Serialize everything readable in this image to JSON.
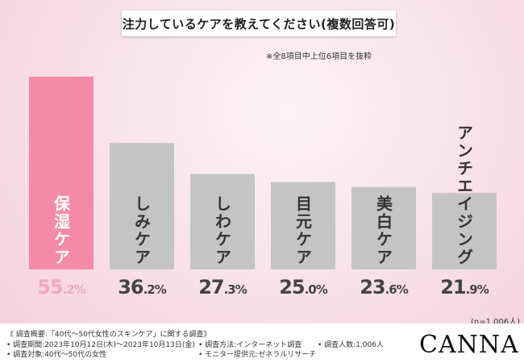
{
  "title": "注力しているケアを教えてください(複数回答可)",
  "note": "※全8項目中上位6項目を抜粋",
  "chart_data": {
    "type": "bar",
    "categories": [
      "保湿ケア",
      "しみケア",
      "しわケア",
      "目元ケア",
      "美白ケア",
      "アンチエイジング"
    ],
    "values": [
      55.2,
      36.2,
      27.3,
      25.0,
      23.6,
      21.9
    ],
    "value_labels": [
      {
        "int": "55",
        "dec": ".2%"
      },
      {
        "int": "36",
        "dec": ".2%"
      },
      {
        "int": "27",
        "dec": ".3%"
      },
      {
        "int": "25",
        "dec": ".0%"
      },
      {
        "int": "23",
        "dec": ".6%"
      },
      {
        "int": "21",
        "dec": ".9%"
      }
    ],
    "unit": "%",
    "ylim": [
      0,
      60
    ],
    "highlight_index": 0,
    "colors": {
      "highlight": "#f58aa8",
      "default": "#c4c4c4"
    },
    "grid": false,
    "legend": "none"
  },
  "sample_note": "(n=1,006人)",
  "footer": {
    "survey_title": "《 調査概要:「40代〜50代女性のスキンケア」に関する調査》",
    "period": "• 調査期間:2023年10月12日(木)〜2023年10月13日(金)",
    "target": "• 調査対象:40代〜50代の女性",
    "method": "• 調査方法:インターネット調査",
    "provider": "• モニター提供元:ゼネラルリサーチ",
    "count": "• 調査人数:1,006人",
    "logo": "CANNA"
  }
}
